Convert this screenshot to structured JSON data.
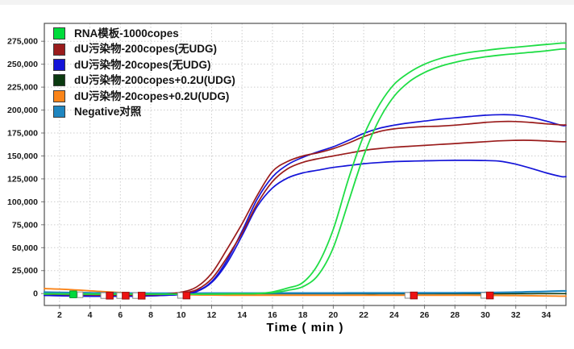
{
  "chart_data": {
    "type": "line",
    "title": "",
    "xlabel": "Time ( min )",
    "ylabel": "",
    "xlim": [
      1,
      35.3
    ],
    "ylim": [
      -13000,
      294500
    ],
    "grid": "dotted",
    "legend_position": "top-left",
    "x_ticks": [
      2,
      4,
      6,
      8,
      10,
      12,
      14,
      16,
      18,
      20,
      22,
      24,
      26,
      28,
      30,
      32,
      34
    ],
    "y_ticks": [
      0,
      25000,
      50000,
      75000,
      100000,
      125000,
      150000,
      175000,
      200000,
      225000,
      250000,
      275000
    ],
    "y_tick_labels": [
      "0",
      "25,000",
      "50,000",
      "75,000",
      "100,000",
      "125,000",
      "150,000",
      "175,000",
      "200,000",
      "225,000",
      "250,000",
      "275,000"
    ],
    "x_values": [
      1,
      2,
      3,
      4,
      5,
      6,
      7,
      8,
      9,
      10,
      11,
      12,
      13,
      14,
      15,
      16,
      17,
      18,
      19,
      20,
      21,
      22,
      23,
      24,
      25,
      26,
      27,
      28,
      29,
      30,
      31,
      32,
      33,
      34,
      35
    ],
    "series": [
      {
        "name": "RNA模板-1000copes",
        "color": "#1FDD45",
        "curves": [
          [
            -400,
            -400,
            -500,
            -500,
            -500,
            -600,
            -600,
            -600,
            -600,
            -600,
            -600,
            -500,
            -400,
            -200,
            100,
            1800,
            6000,
            12000,
            32000,
            70000,
            125000,
            172000,
            205000,
            228000,
            241000,
            250000,
            256000,
            260000,
            263000,
            265000,
            267000,
            268500,
            270000,
            271500,
            273000
          ],
          [
            -400,
            -400,
            -500,
            -500,
            -500,
            -600,
            -600,
            -600,
            -600,
            -600,
            -600,
            -500,
            -400,
            -300,
            0,
            1000,
            3500,
            7500,
            20000,
            50000,
            100000,
            150000,
            189000,
            215000,
            231000,
            241000,
            247500,
            252000,
            255500,
            258000,
            260000,
            261500,
            263000,
            264500,
            266500
          ]
        ]
      },
      {
        "name": "dU污染物-200copes(无UDG)",
        "color": "#9A1C1C",
        "curves": [
          [
            -600,
            -900,
            -1100,
            -1300,
            -1500,
            -1600,
            -1500,
            -1200,
            -600,
            1500,
            7000,
            22000,
            48000,
            76000,
            107000,
            133000,
            144000,
            150000,
            153500,
            158000,
            164000,
            171000,
            176500,
            179500,
            181000,
            182000,
            182500,
            183500,
            185000,
            186500,
            187500,
            187500,
            186500,
            185000,
            183800
          ],
          [
            -600,
            -900,
            -1100,
            -1300,
            -1500,
            -1600,
            -1500,
            -1200,
            -700,
            500,
            4000,
            16000,
            39000,
            66000,
            98000,
            122000,
            136000,
            143000,
            147000,
            150000,
            153000,
            156000,
            158000,
            159500,
            160500,
            161500,
            162500,
            163500,
            164500,
            165500,
            166500,
            167000,
            167000,
            166300,
            165500
          ]
        ]
      },
      {
        "name": "dU污染物-20copes(无UDG)",
        "color": "#1414D8",
        "curves": [
          [
            -2000,
            -2400,
            -2700,
            -2900,
            -3000,
            -3000,
            -2800,
            -2500,
            -1800,
            -800,
            2500,
            13000,
            36000,
            68000,
            103000,
            127000,
            140500,
            148500,
            154500,
            160000,
            167000,
            174500,
            180000,
            183500,
            186000,
            188000,
            190000,
            191500,
            193000,
            194300,
            195000,
            194500,
            192000,
            188000,
            183300
          ],
          [
            -2000,
            -2400,
            -2700,
            -2900,
            -3000,
            -3000,
            -2800,
            -2500,
            -1900,
            -1000,
            2000,
            12000,
            33000,
            63000,
            95000,
            115000,
            126000,
            131500,
            134500,
            137500,
            139500,
            141500,
            142800,
            143800,
            144300,
            144700,
            145000,
            145200,
            145200,
            145000,
            144200,
            141000,
            136500,
            131500,
            127500
          ]
        ]
      },
      {
        "name": "dU污染物-200copes+0.2U(UDG)",
        "color": "#0B3A10",
        "curves": [
          [
            -200,
            -250,
            -300,
            -300,
            -350,
            -350,
            -400,
            -400,
            -400,
            -400,
            -400,
            -400,
            -350,
            -350,
            -300,
            -300,
            -300,
            -300,
            -300,
            -300,
            -300,
            -300,
            -300,
            -250,
            -250,
            -250,
            -250,
            -200,
            -200,
            -200,
            -200,
            -150,
            -150,
            -100,
            -100
          ]
        ]
      },
      {
        "name": "dU污染物-20copes+0.2U(UDG)",
        "color": "#FA8419",
        "curves": [
          [
            5500,
            4800,
            4000,
            3000,
            2000,
            1100,
            300,
            -400,
            -900,
            -1300,
            -1500,
            -1700,
            -1800,
            -1800,
            -1800,
            -1800,
            -1800,
            -1800,
            -1800,
            -1800,
            -1800,
            -1800,
            -1800,
            -1800,
            -1800,
            -1800,
            -1800,
            -1800,
            -1800,
            -1900,
            -2000,
            -2200,
            -2400,
            -2600,
            -2800
          ]
        ]
      },
      {
        "name": "Negative对照",
        "color": "#1F86C0",
        "curves": [
          [
            1500,
            1200,
            1000,
            800,
            600,
            500,
            400,
            300,
            300,
            300,
            350,
            400,
            400,
            450,
            450,
            500,
            500,
            500,
            550,
            550,
            600,
            600,
            650,
            650,
            700,
            700,
            750,
            800,
            900,
            1000,
            1200,
            1500,
            1900,
            2300,
            2800
          ]
        ]
      }
    ],
    "markers": [
      {
        "t": 3.35,
        "v": -1300,
        "type": "open"
      },
      {
        "t": 2.9,
        "v": -900,
        "type": "green"
      },
      {
        "t": 4.9,
        "v": -2200,
        "type": "open"
      },
      {
        "t": 5.3,
        "v": -2300,
        "type": "red"
      },
      {
        "t": 5.95,
        "v": -2200,
        "type": "open"
      },
      {
        "t": 6.35,
        "v": -2300,
        "type": "red"
      },
      {
        "t": 7.0,
        "v": -2200,
        "type": "open"
      },
      {
        "t": 7.4,
        "v": -2300,
        "type": "red"
      },
      {
        "t": 9.95,
        "v": -2000,
        "type": "open"
      },
      {
        "t": 10.35,
        "v": -2100,
        "type": "red"
      },
      {
        "t": 24.9,
        "v": -2000,
        "type": "open"
      },
      {
        "t": 25.3,
        "v": -2100,
        "type": "red"
      },
      {
        "t": 29.9,
        "v": -2000,
        "type": "open"
      },
      {
        "t": 30.3,
        "v": -2100,
        "type": "red"
      }
    ],
    "marker_colors": {
      "green_fill": "#00D93C",
      "green_stroke": "#0B9C30",
      "red_fill": "#EE1111",
      "red_stroke": "#9B0F0F",
      "open_fill": "#FFFFFF",
      "open_stroke": "#8A8A8A"
    },
    "colors": {
      "grid": "#CDCDCD",
      "plot_border": "#4F4F4F",
      "tick_text": "#1A1A1A"
    }
  }
}
